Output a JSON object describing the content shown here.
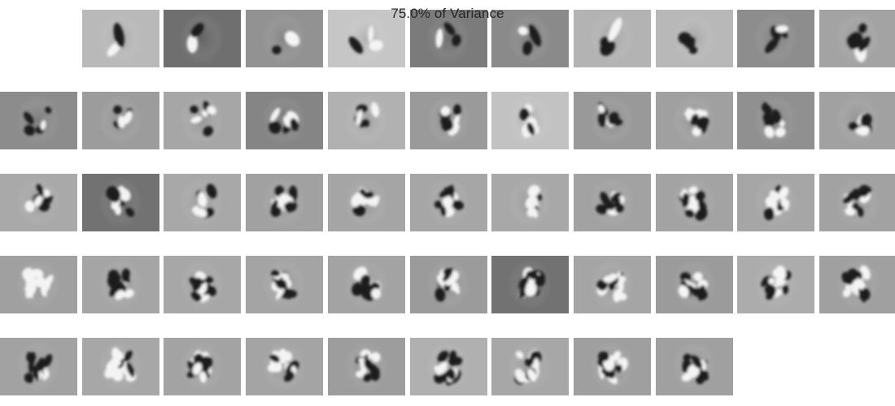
{
  "figure": {
    "title": "75.0% of Variance"
  },
  "components": {
    "row_counts": [
      10,
      11,
      11,
      11,
      9
    ],
    "backgrounds": [
      [
        "#b9b9b9",
        "#6f6f6f",
        "#929292",
        "#c6c6c6",
        "#7b7b7b",
        "#8a8a8a",
        "#b3b3b3",
        "#b8b8b8",
        "#8d8d8d",
        "#a3a3a3"
      ],
      [
        "#8c8c8c",
        "#9c9c9c",
        "#a6a6a6",
        "#858585",
        "#b1b1b1",
        "#9a9a9a",
        "#c2c2c2",
        "#999999",
        "#a0a0a0",
        "#909090",
        "#a1a1a1"
      ],
      [
        "#a9a9a9",
        "#727272",
        "#a8a8a8",
        "#a1a1a1",
        "#a5a5a5",
        "#a6a6a6",
        "#a8a8a8",
        "#a2a2a2",
        "#a3a3a3",
        "#a6a6a6",
        "#a2a2a2"
      ],
      [
        "#a0a0a0",
        "#a5a5a5",
        "#a7a7a7",
        "#a4a4a4",
        "#a3a3a3",
        "#9b9b9b",
        "#727272",
        "#a5a5a5",
        "#9b9b9b",
        "#acacac",
        "#a0a0a0"
      ],
      [
        "#a2a2a2",
        "#a7a7a7",
        "#a3a3a3",
        "#a4a4a4",
        "#9d9d9d",
        "#b0b0b0",
        "#a7a7a7",
        "#9f9f9f",
        "#a0a0a0"
      ]
    ]
  }
}
